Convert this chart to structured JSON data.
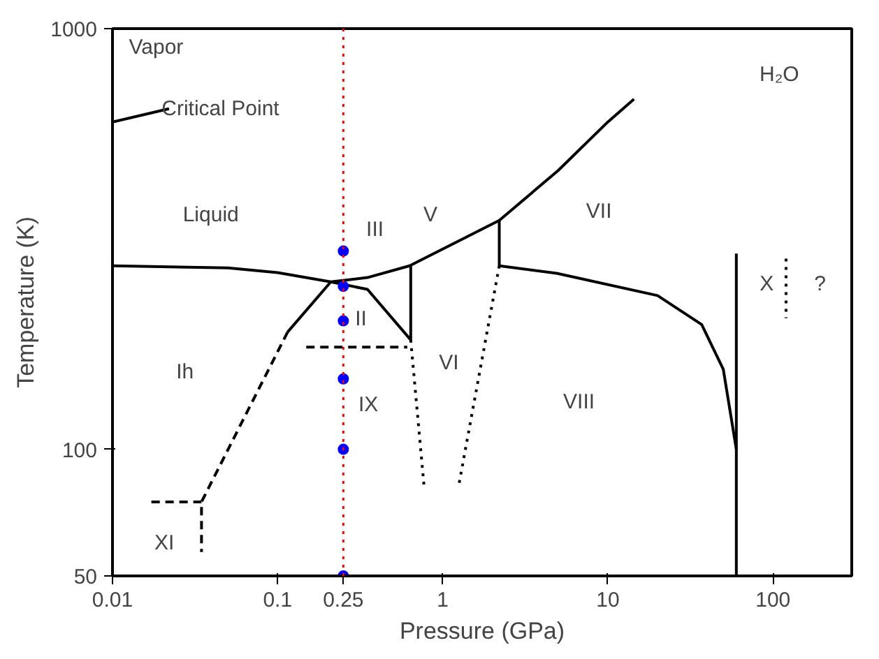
{
  "chart_data": {
    "type": "line",
    "xlabel": "Pressure (GPa)",
    "ylabel": "Temperature (K)",
    "log": "xy",
    "xlim": [
      0.01,
      300
    ],
    "ylim": [
      50,
      1000
    ],
    "xticks": [
      0.01,
      0.1,
      0.25,
      1,
      10,
      100
    ],
    "yticks": [
      50,
      100,
      1000
    ],
    "grid": false,
    "marker": "none",
    "series": [
      {
        "color": "#000000",
        "line_style": "solid",
        "x": [
          0.01,
          0.05,
          0.1,
          0.21,
          0.35,
          0.63,
          2.2,
          5,
          10,
          14.4
        ],
        "values": [
          273,
          270,
          263,
          250,
          256,
          273,
          350,
          460,
          600,
          680
        ]
      },
      {
        "color": "#000000",
        "line_style": "solid",
        "x": [
          2.2,
          2.2,
          4.9,
          20,
          37,
          50,
          60
        ],
        "values": [
          350,
          273,
          262,
          232,
          198,
          155,
          100
        ]
      },
      {
        "color": "#000000",
        "line_style": "solid",
        "x": [
          60,
          60
        ],
        "values": [
          292,
          50
        ]
      },
      {
        "color": "#000000",
        "line_style": "solid",
        "x": [
          0.21,
          0.115
        ],
        "values": [
          250,
          190
        ]
      },
      {
        "color": "#000000",
        "line_style": "solid",
        "x": [
          0.21,
          0.35,
          0.64,
          0.64
        ],
        "values": [
          250,
          240,
          182,
          273
        ]
      },
      {
        "color": "#000000",
        "line_style": "solid",
        "x": [
          0.01,
          0.022
        ],
        "values": [
          600,
          645
        ]
      },
      {
        "color": "#000000",
        "line_style": "dashed",
        "x": [
          0.115,
          0.0346,
          0.0346
        ],
        "values": [
          190,
          75,
          57
        ]
      },
      {
        "color": "#000000",
        "line_style": "dashed",
        "x": [
          0.0172,
          0.0346
        ],
        "values": [
          75,
          75
        ]
      },
      {
        "color": "#000000",
        "line_style": "dashed",
        "x": [
          0.149,
          0.61
        ],
        "values": [
          175,
          175
        ]
      },
      {
        "color": "#000000",
        "line_style": "dotted",
        "x": [
          0.64,
          0.77
        ],
        "values": [
          182,
          82
        ]
      },
      {
        "color": "#000000",
        "line_style": "dotted",
        "x": [
          2.2,
          1.25
        ],
        "values": [
          273,
          82
        ]
      },
      {
        "color": "#000000",
        "line_style": "dotted",
        "x": [
          120,
          120
        ],
        "values": [
          284,
          205
        ]
      },
      {
        "type": "scatter",
        "marker": "circle",
        "color": "#0000ff",
        "x": [
          0.25,
          0.25,
          0.25,
          0.25,
          0.25,
          0.25
        ],
        "values": [
          296,
          244,
          202,
          147,
          100,
          50
        ]
      }
    ],
    "ref_lines": [
      {
        "axis": "x",
        "value": 0.25,
        "color": "#ff0000",
        "line_style": "dotted"
      }
    ],
    "annotations": [
      "Vapor",
      "Critical Point",
      "H₂O",
      "Liquid",
      "Ih",
      "XI",
      "IX",
      "II",
      "III",
      "V",
      "VI",
      "VII",
      "VIII",
      "X",
      "?"
    ]
  }
}
